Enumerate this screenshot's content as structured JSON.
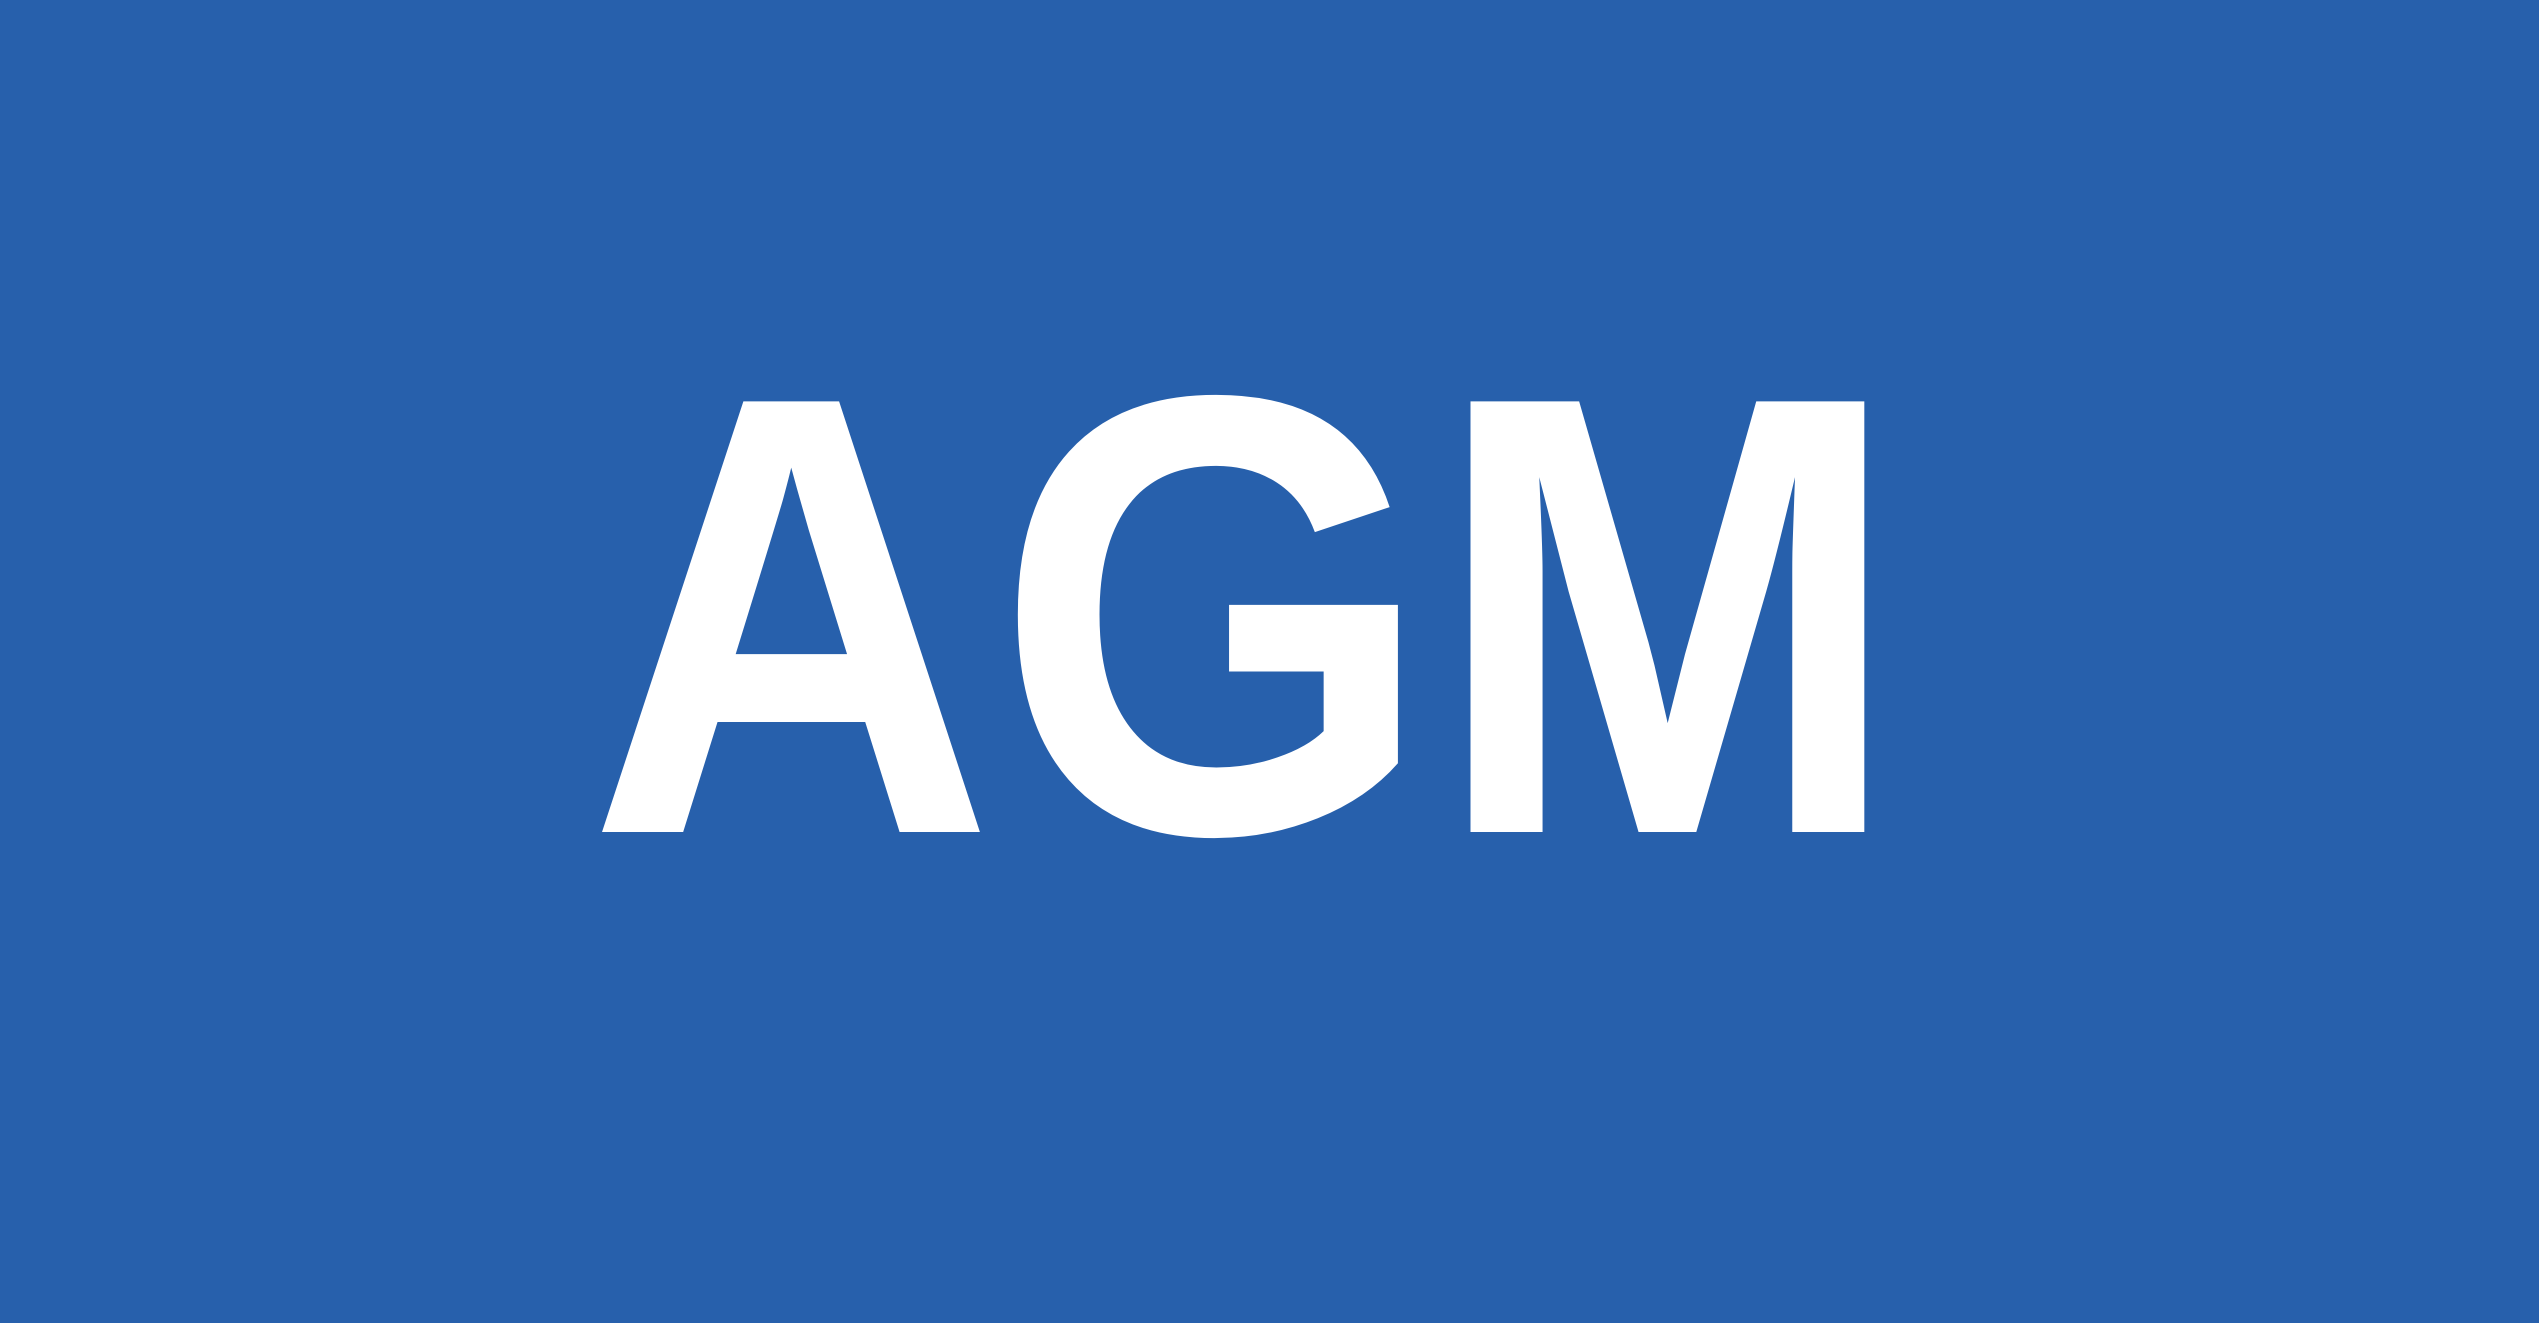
{
  "logo": {
    "text": "AGM"
  }
}
